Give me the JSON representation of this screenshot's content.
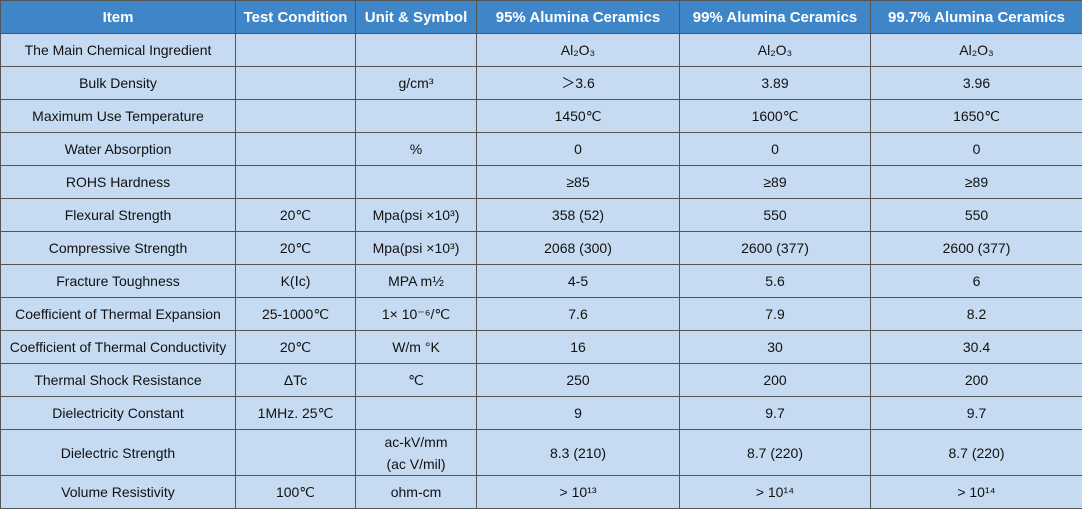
{
  "table": {
    "header": [
      "Item",
      "Test Condition",
      "Unit & Symbol",
      "95% Alumina Ceramics",
      "99% Alumina Ceramics",
      "99.7% Alumina Ceramics"
    ],
    "rows": [
      [
        "The Main Chemical Ingredient",
        null,
        null,
        "Al₂O₃",
        "Al₂O₃",
        "Al₂O₃"
      ],
      [
        "Bulk Density",
        null,
        "g/cm³",
        "＞3.6",
        "3.89",
        "3.96"
      ],
      [
        "Maximum Use Temperature",
        null,
        null,
        "1450℃",
        "1600℃",
        "1650℃"
      ],
      [
        "Water Absorption",
        null,
        "%",
        "0",
        "0",
        "0"
      ],
      [
        "ROHS Hardness",
        null,
        null,
        "≥85",
        "≥89",
        "≥89"
      ],
      [
        "Flexural Strength",
        "20℃",
        "Mpa(psi ×10³)",
        "358 (52)",
        "550",
        "550"
      ],
      [
        "Compressive Strength",
        "20℃",
        "Mpa(psi ×10³)",
        "2068 (300)",
        "2600 (377)",
        "2600 (377)"
      ],
      [
        "Fracture Toughness",
        "K(Ⅰc)",
        "MPA m½",
        "4-5",
        "5.6",
        "6"
      ],
      [
        "Coefficient of Thermal Expansion",
        "25-1000℃",
        "1× 10⁻⁶/℃",
        "7.6",
        "7.9",
        "8.2"
      ],
      [
        "Coefficient of Thermal Conductivity",
        "20℃",
        "W/m °K",
        "16",
        "30",
        "30.4"
      ],
      [
        "Thermal Shock Resistance",
        "ΔTc",
        "℃",
        "250",
        "200",
        "200"
      ],
      [
        "Dielectricity Constant",
        "1MHz. 25℃",
        null,
        "9",
        "9.7",
        "9.7"
      ],
      [
        "Dielectric Strength",
        null,
        "ac-kV/mm\n(ac V/mil)",
        "8.3 (210)",
        "8.7 (220)",
        "8.7 (220)"
      ],
      [
        "Volume Resistivity",
        "100℃",
        "ohm-cm",
        "> 10¹³",
        "> 10¹⁴",
        "> 10¹⁴"
      ]
    ]
  }
}
